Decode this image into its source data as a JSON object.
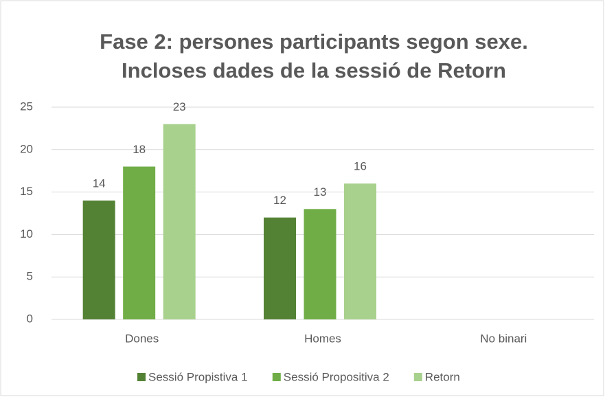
{
  "chart_data": {
    "type": "bar",
    "title": [
      "Fase 2: persones participants segon sexe.",
      "Incloses dades de la sessió de Retorn"
    ],
    "categories": [
      "Dones",
      "Homes",
      "No binari"
    ],
    "series": [
      {
        "name": "Sessió Propistiva 1",
        "color": "#548235",
        "values": [
          14,
          12,
          null
        ]
      },
      {
        "name": "Sessió Propositiva 2",
        "color": "#70ad47",
        "values": [
          18,
          13,
          null
        ]
      },
      {
        "name": "Retorn",
        "color": "#a9d18e",
        "values": [
          23,
          16,
          null
        ]
      }
    ],
    "ylim": [
      0,
      25
    ],
    "yticks": [
      0,
      5,
      10,
      15,
      20,
      25
    ],
    "grid": true,
    "legend": "bottom"
  }
}
